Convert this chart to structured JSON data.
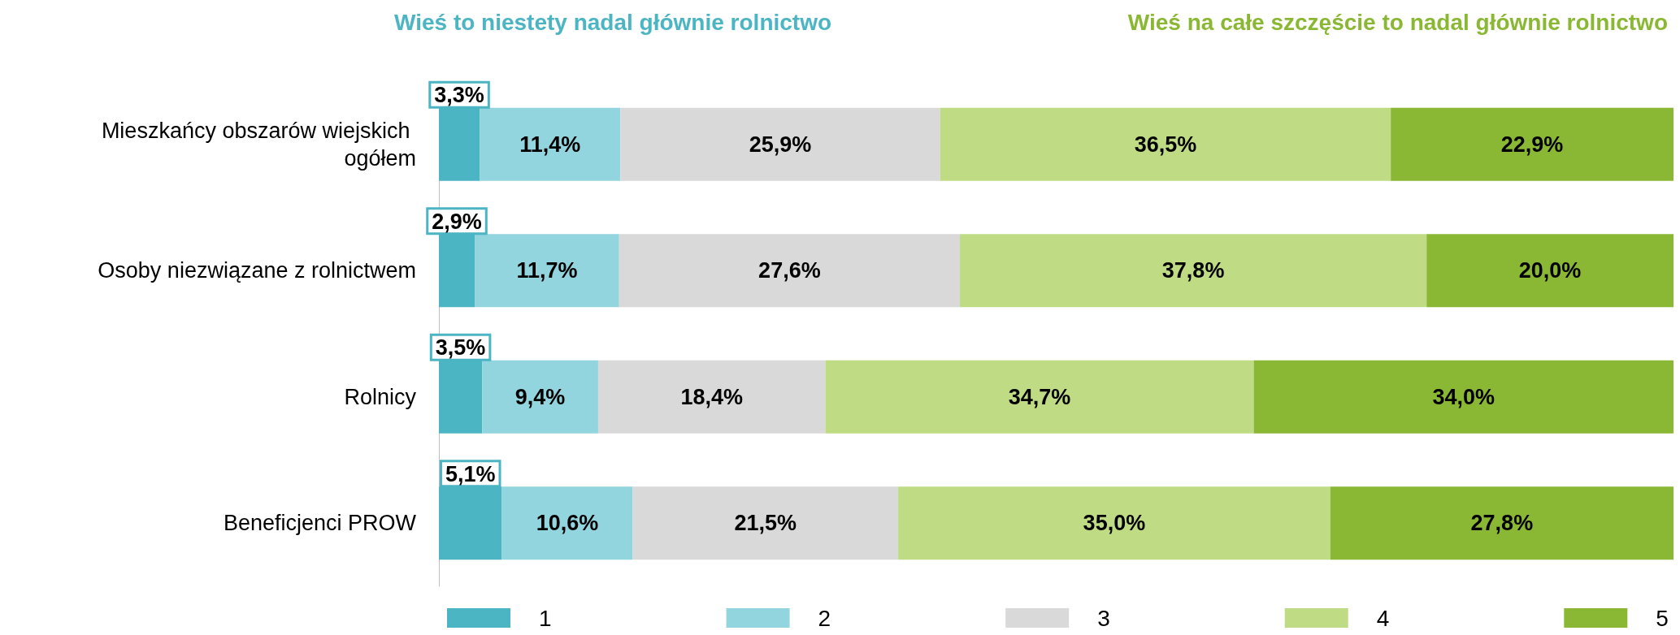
{
  "chart_data": {
    "type": "bar",
    "orientation": "horizontal",
    "stacked": true,
    "legend": "bottom",
    "annotations": [
      "Wieś to niestety nadal głównie rolnictwo",
      "Wieś na całe szczęście to nadal głównie rolnictwo"
    ],
    "categories": [
      "Mieszkańcy obszarów wiejskich ogółem",
      "Osoby niezwiązane z rolnictwem",
      "Rolnicy",
      "Beneficjenci PROW"
    ],
    "series": [
      {
        "name": "1",
        "color": "#4bb5c4",
        "values": [
          3.3,
          2.9,
          3.5,
          5.1
        ],
        "value_labels": [
          "3,3%",
          "2,9%",
          "3,5%",
          "5,1%"
        ]
      },
      {
        "name": "2",
        "color": "#93d5de",
        "values": [
          11.4,
          11.7,
          9.4,
          10.6
        ],
        "value_labels": [
          "11,4%",
          "11,7%",
          "9,4%",
          "10,6%"
        ]
      },
      {
        "name": "3",
        "color": "#d9d9d9",
        "values": [
          25.9,
          27.6,
          18.4,
          21.5
        ],
        "value_labels": [
          "25,9%",
          "27,6%",
          "18,4%",
          "21,5%"
        ]
      },
      {
        "name": "4",
        "color": "#bfdc85",
        "values": [
          36.5,
          37.8,
          34.7,
          35.0
        ],
        "value_labels": [
          "36,5%",
          "37,8%",
          "34,7%",
          "35,0%"
        ]
      },
      {
        "name": "5",
        "color": "#8bb834",
        "values": [
          22.9,
          20.0,
          34.0,
          27.8
        ],
        "value_labels": [
          "22,9%",
          "20,0%",
          "34,0%",
          "27,8%"
        ]
      }
    ]
  }
}
